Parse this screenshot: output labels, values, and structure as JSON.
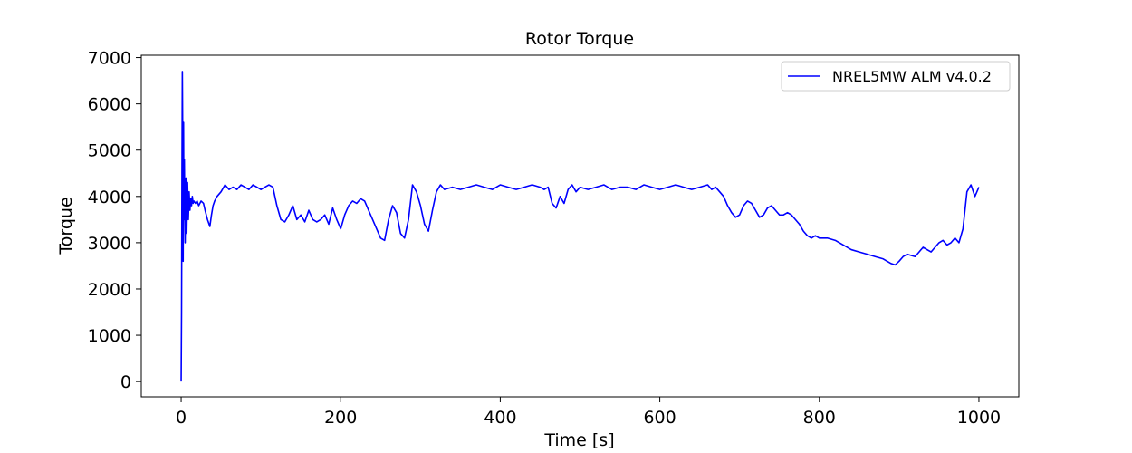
{
  "chart_data": {
    "type": "line",
    "title": "Rotor Torque",
    "xlabel": "Time [s]",
    "ylabel": "Torque",
    "xlim": [
      -50,
      1050
    ],
    "ylim": [
      -330,
      7050
    ],
    "xticks": [
      0,
      200,
      400,
      600,
      800,
      1000
    ],
    "yticks": [
      0,
      1000,
      2000,
      3000,
      4000,
      5000,
      6000,
      7000
    ],
    "grid": false,
    "legend_position": "top-right",
    "series": [
      {
        "name": "NREL5MW ALM v4.0.2",
        "color": "#0000ff",
        "x": [
          0,
          0.5,
          1,
          1.5,
          2,
          2.5,
          3,
          3.5,
          4,
          5,
          6,
          7,
          8,
          9,
          10,
          11,
          12,
          13,
          14,
          15,
          16,
          18,
          20,
          22,
          25,
          28,
          30,
          33,
          36,
          38,
          40,
          42,
          45,
          50,
          55,
          60,
          65,
          70,
          75,
          80,
          85,
          90,
          95,
          100,
          105,
          110,
          115,
          120,
          125,
          130,
          135,
          140,
          145,
          150,
          155,
          160,
          165,
          170,
          175,
          180,
          185,
          190,
          195,
          200,
          205,
          210,
          215,
          220,
          225,
          230,
          235,
          240,
          245,
          250,
          255,
          260,
          265,
          270,
          275,
          280,
          285,
          290,
          295,
          300,
          305,
          310,
          315,
          320,
          325,
          330,
          340,
          350,
          360,
          370,
          380,
          390,
          400,
          410,
          420,
          430,
          440,
          450,
          455,
          460,
          465,
          470,
          475,
          480,
          485,
          490,
          495,
          500,
          510,
          520,
          530,
          540,
          550,
          560,
          570,
          580,
          590,
          600,
          610,
          620,
          630,
          640,
          650,
          660,
          665,
          670,
          675,
          680,
          685,
          690,
          695,
          700,
          705,
          710,
          715,
          720,
          725,
          730,
          735,
          740,
          745,
          750,
          755,
          760,
          765,
          770,
          775,
          780,
          785,
          790,
          795,
          800,
          810,
          820,
          830,
          840,
          850,
          860,
          870,
          880,
          890,
          895,
          900,
          905,
          910,
          920,
          925,
          930,
          935,
          940,
          945,
          950,
          955,
          960,
          965,
          970,
          975,
          980,
          985,
          990,
          995,
          1000
        ],
        "y": [
          0,
          1500,
          4500,
          6700,
          5200,
          2600,
          5600,
          3500,
          4800,
          3000,
          4400,
          3200,
          4300,
          3500,
          4100,
          3700,
          3950,
          3800,
          4000,
          3850,
          3900,
          3850,
          3900,
          3800,
          3900,
          3850,
          3700,
          3500,
          3350,
          3600,
          3800,
          3900,
          4000,
          4100,
          4250,
          4150,
          4200,
          4150,
          4250,
          4200,
          4150,
          4250,
          4200,
          4150,
          4200,
          4250,
          4200,
          3800,
          3500,
          3450,
          3600,
          3800,
          3500,
          3600,
          3450,
          3700,
          3500,
          3450,
          3500,
          3600,
          3400,
          3750,
          3500,
          3300,
          3600,
          3800,
          3900,
          3850,
          3950,
          3900,
          3700,
          3500,
          3300,
          3100,
          3050,
          3500,
          3800,
          3650,
          3200,
          3100,
          3500,
          4250,
          4100,
          3800,
          3400,
          3250,
          3700,
          4100,
          4250,
          4150,
          4200,
          4150,
          4200,
          4250,
          4200,
          4150,
          4250,
          4200,
          4150,
          4200,
          4250,
          4200,
          4150,
          4200,
          3850,
          3750,
          4000,
          3850,
          4150,
          4250,
          4100,
          4200,
          4150,
          4200,
          4250,
          4150,
          4200,
          4200,
          4150,
          4250,
          4200,
          4150,
          4200,
          4250,
          4200,
          4150,
          4200,
          4250,
          4150,
          4200,
          4100,
          4000,
          3800,
          3650,
          3550,
          3600,
          3800,
          3900,
          3850,
          3700,
          3550,
          3600,
          3750,
          3800,
          3700,
          3600,
          3600,
          3650,
          3600,
          3500,
          3400,
          3250,
          3150,
          3100,
          3150,
          3100,
          3100,
          3050,
          2950,
          2850,
          2800,
          2750,
          2700,
          2650,
          2550,
          2520,
          2600,
          2700,
          2750,
          2700,
          2800,
          2900,
          2850,
          2800,
          2900,
          3000,
          3050,
          2950,
          3000,
          3100,
          3000,
          3300,
          4100,
          4250,
          4000,
          4200
        ]
      }
    ]
  }
}
